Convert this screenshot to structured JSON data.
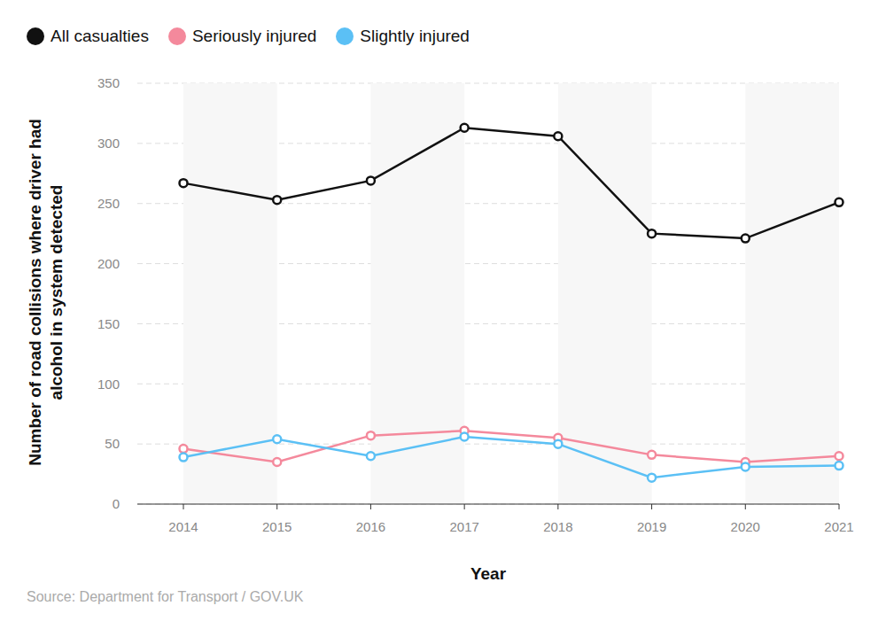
{
  "chart_data": {
    "type": "line",
    "x_label": "Year",
    "y_label": "Number of road collisions where driver had alcohol in system detected",
    "source": "Source: Department for Transport / GOV.UK",
    "categories": [
      "2014",
      "2015",
      "2016",
      "2017",
      "2018",
      "2019",
      "2020",
      "2021"
    ],
    "series": [
      {
        "name": "All casualties",
        "color": "#111111",
        "values": [
          267,
          253,
          269,
          313,
          306,
          225,
          221,
          251
        ]
      },
      {
        "name": "Seriously injured",
        "color": "#f4899c",
        "values": [
          46,
          35,
          57,
          61,
          55,
          41,
          35,
          40
        ]
      },
      {
        "name": "Slightly injured",
        "color": "#5bc0f5",
        "values": [
          39,
          54,
          40,
          56,
          50,
          22,
          31,
          32
        ]
      }
    ],
    "ylim": [
      0,
      350
    ],
    "yticks": [
      0,
      50,
      100,
      150,
      200,
      250,
      300,
      350
    ],
    "grid": true,
    "legend": "top left",
    "marker": "circle"
  }
}
